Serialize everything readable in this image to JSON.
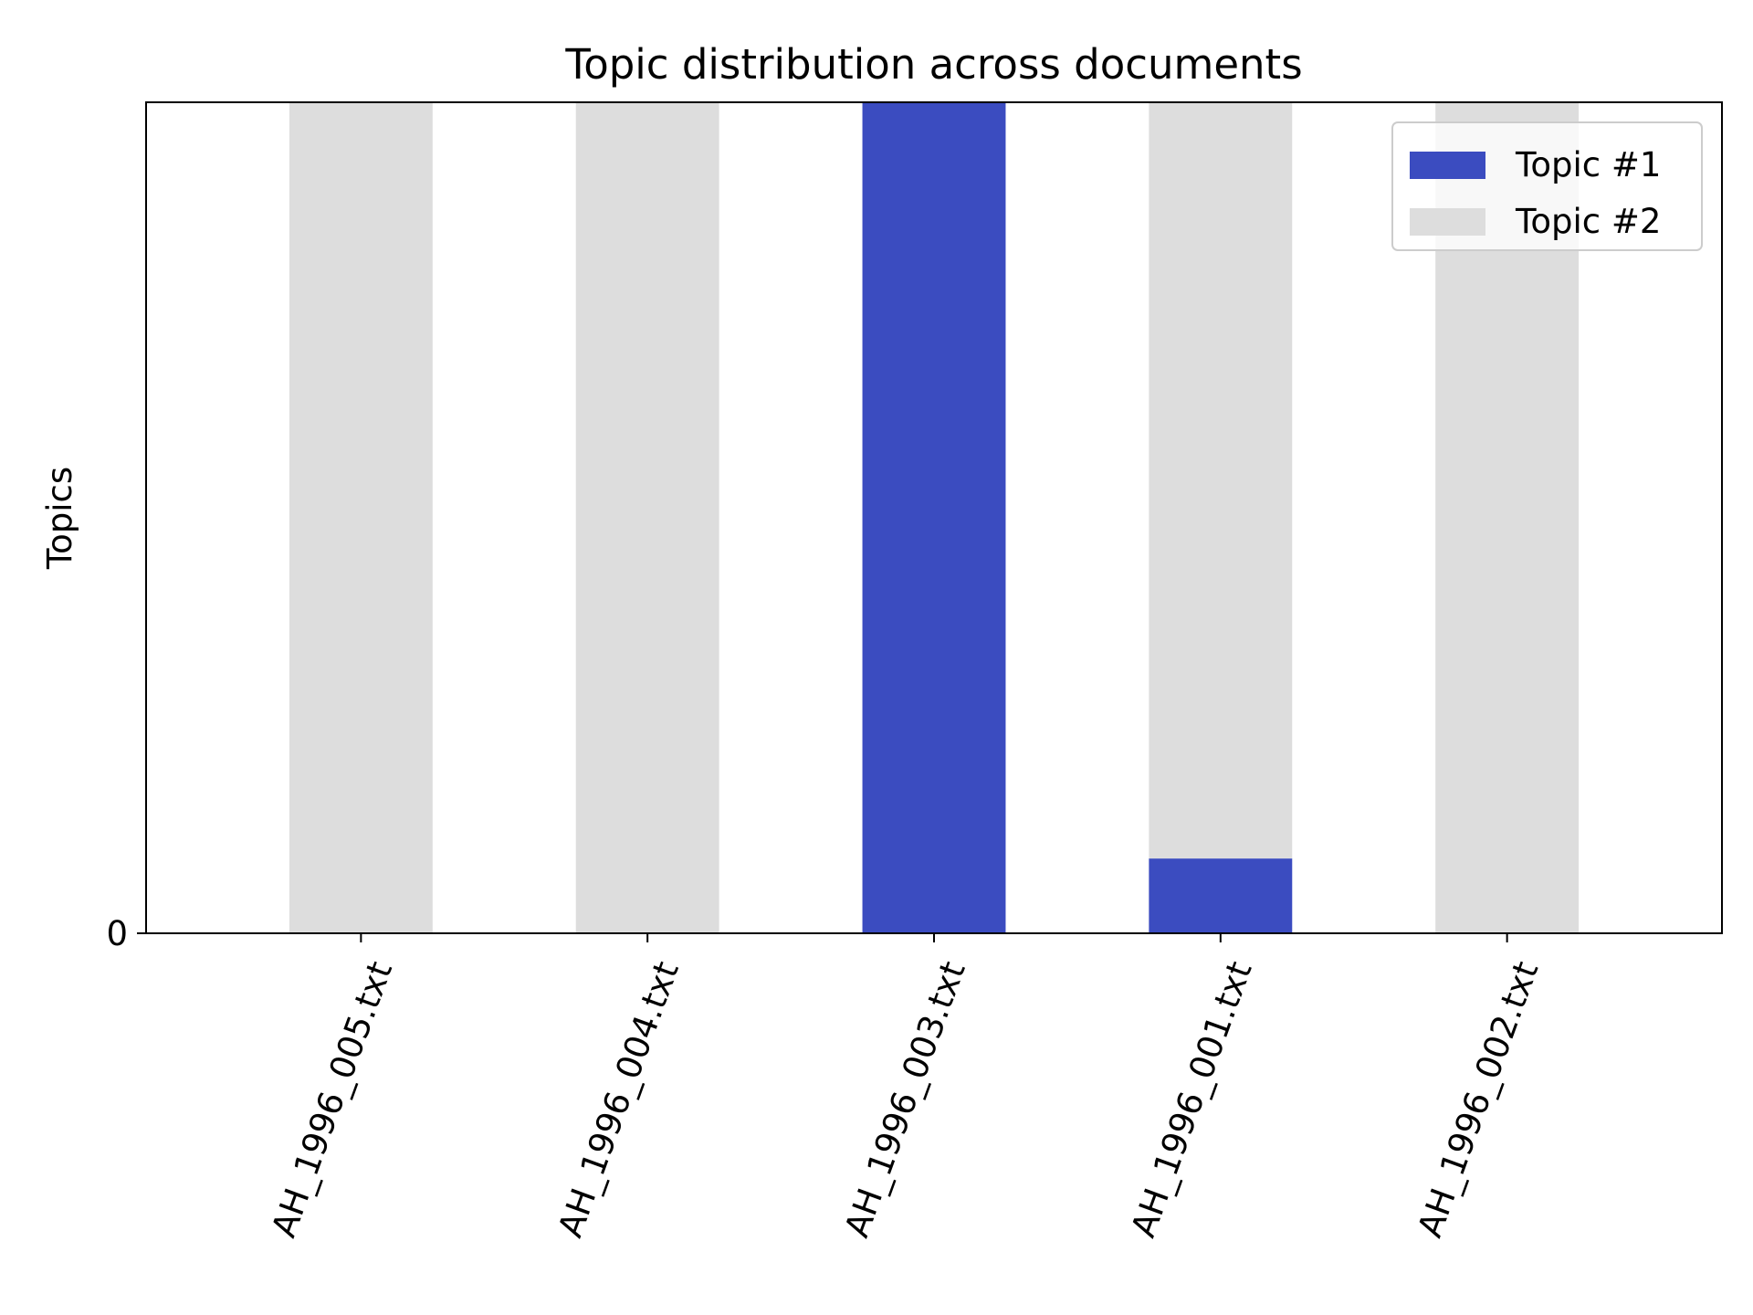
{
  "chart_data": {
    "type": "bar",
    "stacked": true,
    "title": "Topic distribution across documents",
    "xlabel": "",
    "ylabel": "Topics",
    "categories": [
      "AH_1996_005.txt",
      "AH_1996_004.txt",
      "AH_1996_003.txt",
      "AH_1996_001.txt",
      "AH_1996_002.txt"
    ],
    "series": [
      {
        "name": "Topic #1",
        "color": "#3b4cc0",
        "values": [
          0,
          0,
          1.0,
          0.09,
          0
        ]
      },
      {
        "name": "Topic #2",
        "color": "#dddddd",
        "values": [
          1.0,
          1.0,
          0,
          0.91,
          1.0
        ]
      }
    ],
    "ylim": [
      0,
      1.0
    ],
    "y_ticks": [
      {
        "value": 0,
        "label": "0"
      }
    ],
    "x_tick_rotation_deg": 70,
    "grid": false,
    "legend_position": "upper right"
  }
}
